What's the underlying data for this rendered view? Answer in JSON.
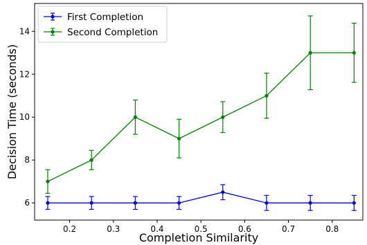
{
  "chart_data": {
    "type": "line",
    "xlabel": "Completion Similarity",
    "ylabel": "Decision Time (seconds)",
    "xlim": [
      0.12,
      0.87
    ],
    "ylim": [
      5.2,
      15.3
    ],
    "xticks": [
      0.2,
      0.3,
      0.4,
      0.5,
      0.6,
      0.7,
      0.8
    ],
    "yticks": [
      6,
      8,
      10,
      12,
      14
    ],
    "grid": false,
    "legend_position": "top-left",
    "x": [
      0.15,
      0.25,
      0.35,
      0.45,
      0.55,
      0.65,
      0.75,
      0.85
    ],
    "series": [
      {
        "name": "First Completion",
        "color": "#0000cc",
        "values": [
          6.0,
          6.0,
          6.0,
          6.0,
          6.5,
          6.0,
          6.0,
          6.0
        ],
        "errors": [
          0.3,
          0.3,
          0.3,
          0.3,
          0.35,
          0.35,
          0.35,
          0.35
        ]
      },
      {
        "name": "Second Completion",
        "color": "#008000",
        "values": [
          7.0,
          8.0,
          10.0,
          9.0,
          10.0,
          11.0,
          13.0,
          13.0
        ],
        "errors": [
          0.55,
          0.45,
          0.8,
          0.9,
          0.72,
          1.05,
          1.72,
          1.38
        ]
      }
    ]
  }
}
